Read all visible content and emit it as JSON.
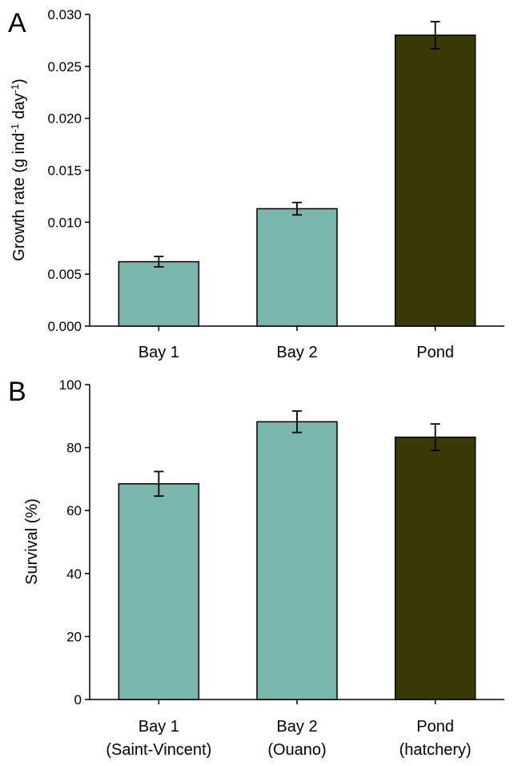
{
  "chart_data": [
    {
      "panel_label": "A",
      "type": "bar",
      "categories": [
        [
          "Bay 1"
        ],
        [
          "Bay 2"
        ],
        [
          "Pond"
        ]
      ],
      "values": [
        0.0062,
        0.0113,
        0.028
      ],
      "errors": [
        0.0005,
        0.0006,
        0.0013
      ],
      "ylabel_main": "Growth rate (g ind",
      "ylabel_sup1": "-1",
      "ylabel_mid": " day",
      "ylabel_sup2": "-1",
      "ylabel_end": ")",
      "ylim": [
        0,
        0.03
      ],
      "yticks": [
        "0.000",
        "0.005",
        "0.010",
        "0.015",
        "0.020",
        "0.025",
        "0.030"
      ],
      "bar_colors": [
        "#7bb6ad",
        "#7bb6ad",
        "#3a3a07"
      ],
      "grid": false
    },
    {
      "panel_label": "B",
      "type": "bar",
      "categories": [
        [
          "Bay 1",
          "(Saint-Vincent)"
        ],
        [
          "Bay 2",
          "(Ouano)"
        ],
        [
          "Pond",
          "(hatchery)"
        ]
      ],
      "values": [
        68.5,
        88.2,
        83.3
      ],
      "errors": [
        3.9,
        3.4,
        4.2
      ],
      "ylabel": "Survival (%)",
      "ylim": [
        0,
        100
      ],
      "yticks": [
        "0",
        "20",
        "40",
        "60",
        "80",
        "100"
      ],
      "bar_colors": [
        "#7bb6ad",
        "#7bb6ad",
        "#3a3a07"
      ],
      "grid": false
    }
  ]
}
